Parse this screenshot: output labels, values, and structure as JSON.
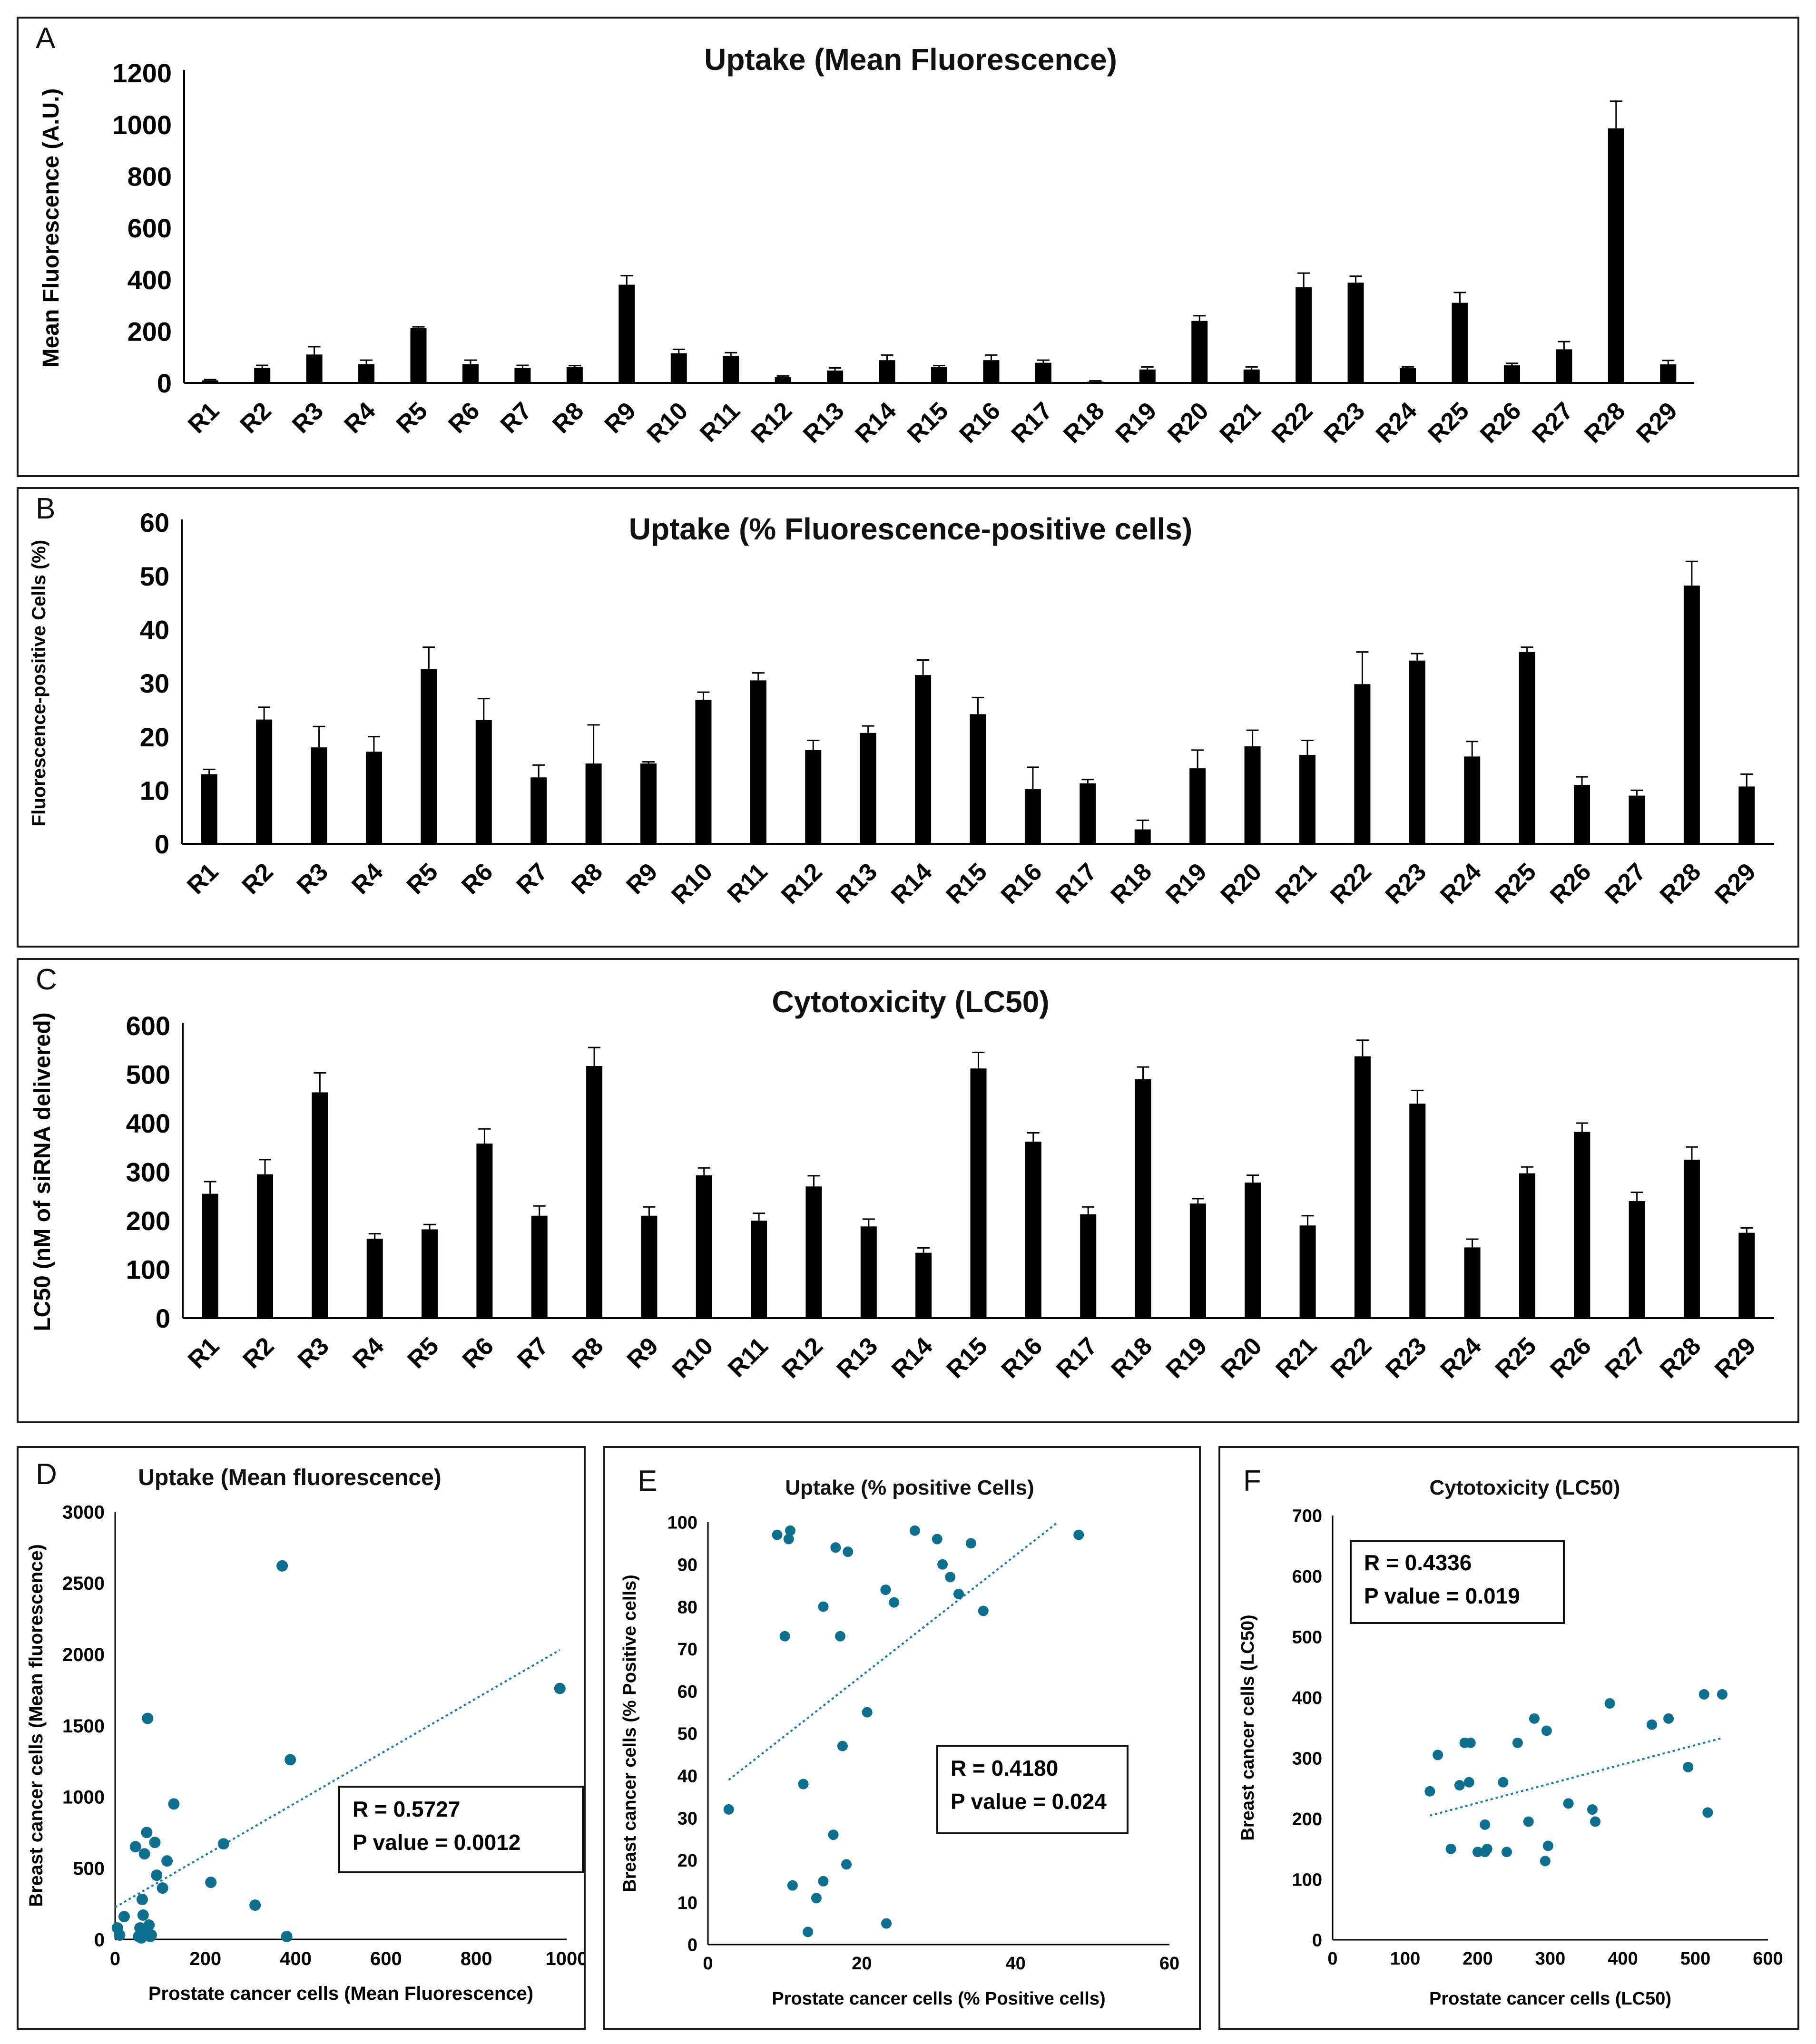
{
  "chart_data": [
    {
      "panel": "A",
      "type": "bar",
      "title": "Uptake (Mean Fluorescence)",
      "xlabel": "",
      "ylabel": "Mean Fluorescence (A.U.)",
      "ylim": [
        0,
        1200
      ],
      "yticks": [
        "0",
        "200",
        "400",
        "600",
        "800",
        "1000",
        "1200"
      ],
      "categories": [
        "R1",
        "R2",
        "R3",
        "R4",
        "R5",
        "R6",
        "R7",
        "R8",
        "R9",
        "R10",
        "R11",
        "R12",
        "R13",
        "R14",
        "R15",
        "R16",
        "R17",
        "R18",
        "R19",
        "R20",
        "R21",
        "R22",
        "R23",
        "R24",
        "R25",
        "R26",
        "R27",
        "R28",
        "R29"
      ],
      "values": [
        10,
        58,
        110,
        73,
        212,
        73,
        58,
        62,
        380,
        115,
        105,
        22,
        48,
        88,
        62,
        88,
        78,
        5,
        52,
        240,
        52,
        370,
        388,
        57,
        310,
        68,
        130,
        985,
        72
      ],
      "errors": [
        3,
        10,
        30,
        15,
        5,
        15,
        10,
        5,
        35,
        15,
        12,
        5,
        10,
        20,
        5,
        20,
        10,
        3,
        10,
        20,
        10,
        55,
        25,
        5,
        40,
        8,
        30,
        105,
        15
      ]
    },
    {
      "panel": "B",
      "type": "bar",
      "title": "Uptake (% Fluorescence-positive cells)",
      "xlabel": "",
      "ylabel": "Fluorescence-positive Cells (%)",
      "ylim": [
        0,
        60
      ],
      "yticks": [
        "0",
        "10",
        "20",
        "30",
        "40",
        "50",
        "60"
      ],
      "categories": [
        "R1",
        "R2",
        "R3",
        "R4",
        "R5",
        "R6",
        "R7",
        "R8",
        "R9",
        "R10",
        "R11",
        "R12",
        "R13",
        "R14",
        "R15",
        "R16",
        "R17",
        "R18",
        "R19",
        "R20",
        "R21",
        "R22",
        "R23",
        "R24",
        "R25",
        "R26",
        "R27",
        "R28",
        "R29"
      ],
      "values": [
        13,
        23.2,
        18,
        17.2,
        32.6,
        23.1,
        12.4,
        15,
        15,
        26.9,
        30.5,
        17.5,
        20.7,
        31.5,
        24.2,
        10.2,
        11.3,
        2.7,
        14.1,
        18.2,
        16.6,
        29.8,
        34.2,
        16.3,
        35.8,
        11,
        9,
        48.2,
        10.7
      ],
      "errors": [
        0.9,
        2.3,
        3.9,
        2.8,
        4.1,
        4,
        2.3,
        7.2,
        0.3,
        1.4,
        1.4,
        1.8,
        1.3,
        2.8,
        3.1,
        4.1,
        0.7,
        1.7,
        3.4,
        3,
        2.7,
        6,
        1.3,
        2.8,
        0.9,
        1.5,
        1,
        4.5,
        2.3
      ]
    },
    {
      "panel": "C",
      "type": "bar",
      "title": "Cytotoxicity (LC50)",
      "xlabel": "",
      "ylabel": "LC50 (nM of siRNA delivered)",
      "ylim": [
        0,
        600
      ],
      "yticks": [
        "0",
        "100",
        "200",
        "300",
        "400",
        "500",
        "600"
      ],
      "categories": [
        "R1",
        "R2",
        "R3",
        "R4",
        "R5",
        "R6",
        "R7",
        "R8",
        "R9",
        "R10",
        "R11",
        "R12",
        "R13",
        "R14",
        "R15",
        "R16",
        "R17",
        "R18",
        "R19",
        "R20",
        "R21",
        "R22",
        "R23",
        "R24",
        "R25",
        "R26",
        "R27",
        "R28",
        "R29"
      ],
      "values": [
        255,
        295,
        463,
        163,
        182,
        358,
        210,
        517,
        210,
        293,
        200,
        270,
        188,
        134,
        512,
        362,
        213,
        490,
        235,
        278,
        190,
        537,
        440,
        145,
        297,
        382,
        240,
        325,
        175
      ],
      "errors": [
        25,
        30,
        40,
        10,
        10,
        30,
        20,
        38,
        18,
        15,
        15,
        22,
        15,
        10,
        33,
        18,
        15,
        25,
        10,
        15,
        20,
        33,
        27,
        17,
        13,
        18,
        18,
        26,
        10
      ]
    },
    {
      "panel": "D",
      "type": "scatter",
      "title": "Uptake (Mean fluorescence)",
      "xlabel": "Prostate cancer cells (Mean Fluorescence)",
      "ylabel": "Breast cancer cells (Mean fluorescence)",
      "xlim": [
        0,
        1000
      ],
      "ylim": [
        0,
        3000
      ],
      "xticks": [
        "0",
        "200",
        "400",
        "600",
        "800",
        "1000"
      ],
      "yticks": [
        "0",
        "500",
        "1000",
        "1500",
        "2000",
        "2500",
        "3000"
      ],
      "x": [
        5,
        10,
        20,
        45,
        52,
        55,
        58,
        60,
        62,
        65,
        68,
        70,
        72,
        75,
        78,
        80,
        88,
        92,
        105,
        115,
        130,
        212,
        240,
        310,
        370,
        380,
        388,
        985,
        58,
        62
      ],
      "y": [
        80,
        30,
        160,
        650,
        20,
        80,
        10,
        280,
        170,
        600,
        50,
        750,
        1550,
        100,
        20,
        30,
        680,
        450,
        360,
        550,
        950,
        400,
        670,
        240,
        2620,
        20,
        1260,
        1760,
        60,
        30
      ],
      "trend": {
        "x": [
          0,
          985
        ],
        "y": [
          225,
          2030
        ]
      },
      "stats": {
        "r": "R = 0.5727",
        "p": "P value = 0.0012"
      }
    },
    {
      "panel": "E",
      "type": "scatter",
      "title": "Uptake (% positive Cells)",
      "xlabel": "Prostate cancer cells (% Positive cells)",
      "ylabel": "Breast cancer cells (% Positive cells)",
      "xlim": [
        0,
        60
      ],
      "ylim": [
        0,
        100
      ],
      "xticks": [
        "0",
        "20",
        "40",
        "60"
      ],
      "yticks": [
        "0",
        "10",
        "20",
        "30",
        "40",
        "50",
        "60",
        "70",
        "80",
        "90",
        "100"
      ],
      "x": [
        2.7,
        9,
        10,
        10.5,
        10.7,
        11,
        12.4,
        13,
        14.1,
        15,
        15,
        16.3,
        16.6,
        17.2,
        17.5,
        18,
        18.2,
        20.7,
        23.1,
        23.2,
        24.2,
        26.9,
        29.8,
        30.5,
        31.5,
        32.6,
        34.2,
        35.8,
        48.2
      ],
      "y": [
        32,
        97,
        73,
        96,
        98,
        14,
        38,
        3,
        11,
        80,
        15,
        26,
        94,
        73,
        47,
        19,
        93,
        55,
        84,
        5,
        81,
        98,
        96,
        90,
        87,
        83,
        95,
        79,
        97
      ],
      "trend": {
        "x": [
          2.7,
          45.5
        ],
        "y": [
          39,
          100
        ]
      },
      "stats": {
        "r": "R = 0.4180",
        "p": "P value = 0.024"
      }
    },
    {
      "panel": "F",
      "type": "scatter",
      "title": "Cytotoxicity (LC50)",
      "xlabel": "Prostate cancer cells (LC50)",
      "ylabel": "Breast cancer cells (LC50)",
      "xlim": [
        0,
        600
      ],
      "ylim": [
        0,
        700
      ],
      "xticks": [
        "0",
        "100",
        "200",
        "300",
        "400",
        "500",
        "600"
      ],
      "yticks": [
        "0",
        "100",
        "200",
        "300",
        "400",
        "500",
        "600",
        "700"
      ],
      "x": [
        134,
        145,
        163,
        175,
        182,
        188,
        190,
        200,
        210,
        210,
        213,
        235,
        240,
        255,
        270,
        278,
        293,
        295,
        297,
        325,
        358,
        362,
        382,
        440,
        463,
        490,
        512,
        517,
        537
      ],
      "y": [
        245,
        305,
        150,
        255,
        325,
        260,
        325,
        145,
        190,
        145,
        150,
        260,
        145,
        325,
        195,
        365,
        130,
        345,
        155,
        225,
        215,
        195,
        390,
        355,
        365,
        285,
        405,
        210,
        405
      ],
      "trend": {
        "x": [
          134,
          537
        ],
        "y": [
          205,
          333
        ]
      },
      "stats": {
        "r": "R = 0.4336",
        "p": "P value = 0.019"
      }
    }
  ],
  "colors": {
    "bar": "#000000",
    "point": "#106e8f",
    "trend": "#1a7aa3",
    "frame": "#1a1a1a"
  },
  "panel_letters": [
    "A",
    "B",
    "C",
    "D",
    "E",
    "F"
  ]
}
